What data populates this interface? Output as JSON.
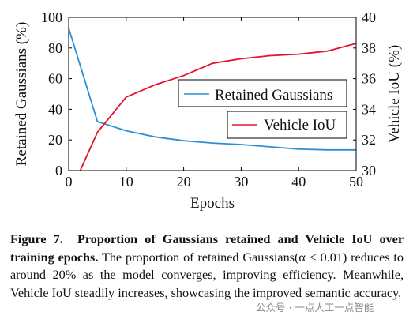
{
  "chart_data": {
    "type": "line",
    "xlabel": "Epochs",
    "ylabel_left": "Retained Gaussians (%)",
    "ylabel_right": "Vehicle IoU (%)",
    "xlim": [
      0,
      50
    ],
    "ylim_left": [
      0,
      100
    ],
    "ylim_right": [
      30,
      40
    ],
    "xticks": [
      "0",
      "10",
      "20",
      "30",
      "40",
      "50"
    ],
    "yticks_left": [
      "0",
      "20",
      "40",
      "60",
      "80",
      "100"
    ],
    "yticks_right": [
      "30",
      "32",
      "34",
      "36",
      "38",
      "40"
    ],
    "grid": false,
    "series": [
      {
        "name": "Retained Gaussians",
        "axis": "left",
        "color": "#2b8fd6",
        "x": [
          0,
          5,
          10,
          15,
          20,
          25,
          30,
          35,
          40,
          45,
          50
        ],
        "y": [
          93,
          32,
          26,
          22,
          19.5,
          18,
          17,
          15.5,
          14,
          13.5,
          13.5
        ]
      },
      {
        "name": "Vehicle IoU",
        "axis": "right",
        "color": "#e8112d",
        "x": [
          2,
          5,
          10,
          15,
          20,
          25,
          30,
          35,
          40,
          45,
          50
        ],
        "y": [
          30,
          32.5,
          34.8,
          35.6,
          36.2,
          37,
          37.3,
          37.5,
          37.6,
          37.8,
          38.3
        ]
      }
    ]
  },
  "caption": {
    "label": "Figure 7.",
    "title": "Proportion of Gaussians retained and Vehicle IoU over training epochs.",
    "body": "The proportion of retained Gaussians(α < 0.01) reduces to around 20% as the model converges, improving efficiency. Meanwhile, Vehicle IoU steadily increases, showcasing the improved semantic accuracy."
  },
  "watermark": "公众号 · 一点人工一点智能"
}
